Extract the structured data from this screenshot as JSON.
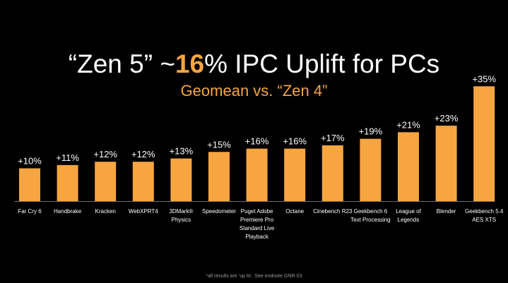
{
  "title": {
    "prefix": "“Zen 5” ~",
    "highlight": "16",
    "suffix": "% IPC Uplift for PCs"
  },
  "subtitle": "Geomean  vs. “Zen 4”",
  "footnote": "*all results are ‘up to’. See endnote GNR-03",
  "colors": {
    "bar": "#f7a541",
    "axis": "#6e6e6e",
    "background": "#000000"
  },
  "chart_data": {
    "type": "bar",
    "title": "“Zen 5” ~16% IPC Uplift for PCs",
    "subtitle": "Geomean  vs. “Zen 4”",
    "categories": [
      [
        "Far Cry 6"
      ],
      [
        "Handbrake"
      ],
      [
        "Kracken"
      ],
      [
        "WebXPRT4"
      ],
      [
        "3DMark®",
        "Physics"
      ],
      [
        "Speedometer"
      ],
      [
        "Puget Adobe",
        "Premiere Pro",
        "Standard Live",
        "Playback"
      ],
      [
        "Octane"
      ],
      [
        "Cinebench R23"
      ],
      [
        "Geekbench 6",
        "Text Processing"
      ],
      [
        "League of",
        "Legends"
      ],
      [
        "Blender"
      ],
      [
        "Geekbench 5.4",
        "AES XTS"
      ]
    ],
    "values": [
      10,
      11,
      12,
      12,
      13,
      15,
      16,
      16,
      17,
      19,
      21,
      23,
      35
    ],
    "value_labels": [
      "+10%",
      "+11%",
      "+12%",
      "+12%",
      "+13%",
      "+15%",
      "+16%",
      "+16%",
      "+17%",
      "+19%",
      "+21%",
      "+23%",
      "+35%"
    ],
    "ylim": [
      0,
      35
    ],
    "grid": false,
    "legend": "none"
  }
}
